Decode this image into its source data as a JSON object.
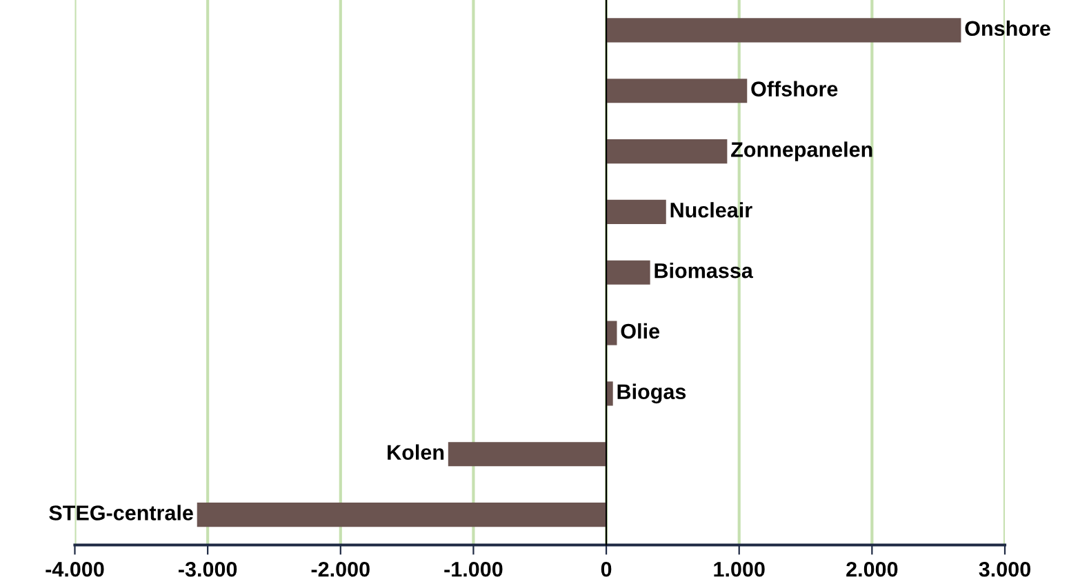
{
  "chart_data": {
    "type": "bar",
    "orientation": "horizontal",
    "categories": [
      "Onshore",
      "Offshore",
      "Zonnepanelen",
      "Nucleair",
      "Biomassa",
      "Olie",
      "Biogas",
      "Kolen",
      "STEG-centrale"
    ],
    "values": [
      2670,
      1060,
      910,
      450,
      330,
      80,
      50,
      -1190,
      -3080
    ],
    "color": "#6b5450",
    "xlim": [
      -4000,
      3000
    ],
    "xticks": [
      {
        "value": -4000,
        "label": "-4.000"
      },
      {
        "value": -3000,
        "label": "-3.000"
      },
      {
        "value": -2000,
        "label": "-2.000"
      },
      {
        "value": -1000,
        "label": "-1.000"
      },
      0,
      {
        "value": 1000,
        "label": "1.000"
      },
      {
        "value": 2000,
        "label": "2.000"
      },
      {
        "value": 3000,
        "label": "3.000"
      }
    ],
    "grid": "x",
    "tick_labels": "x"
  }
}
